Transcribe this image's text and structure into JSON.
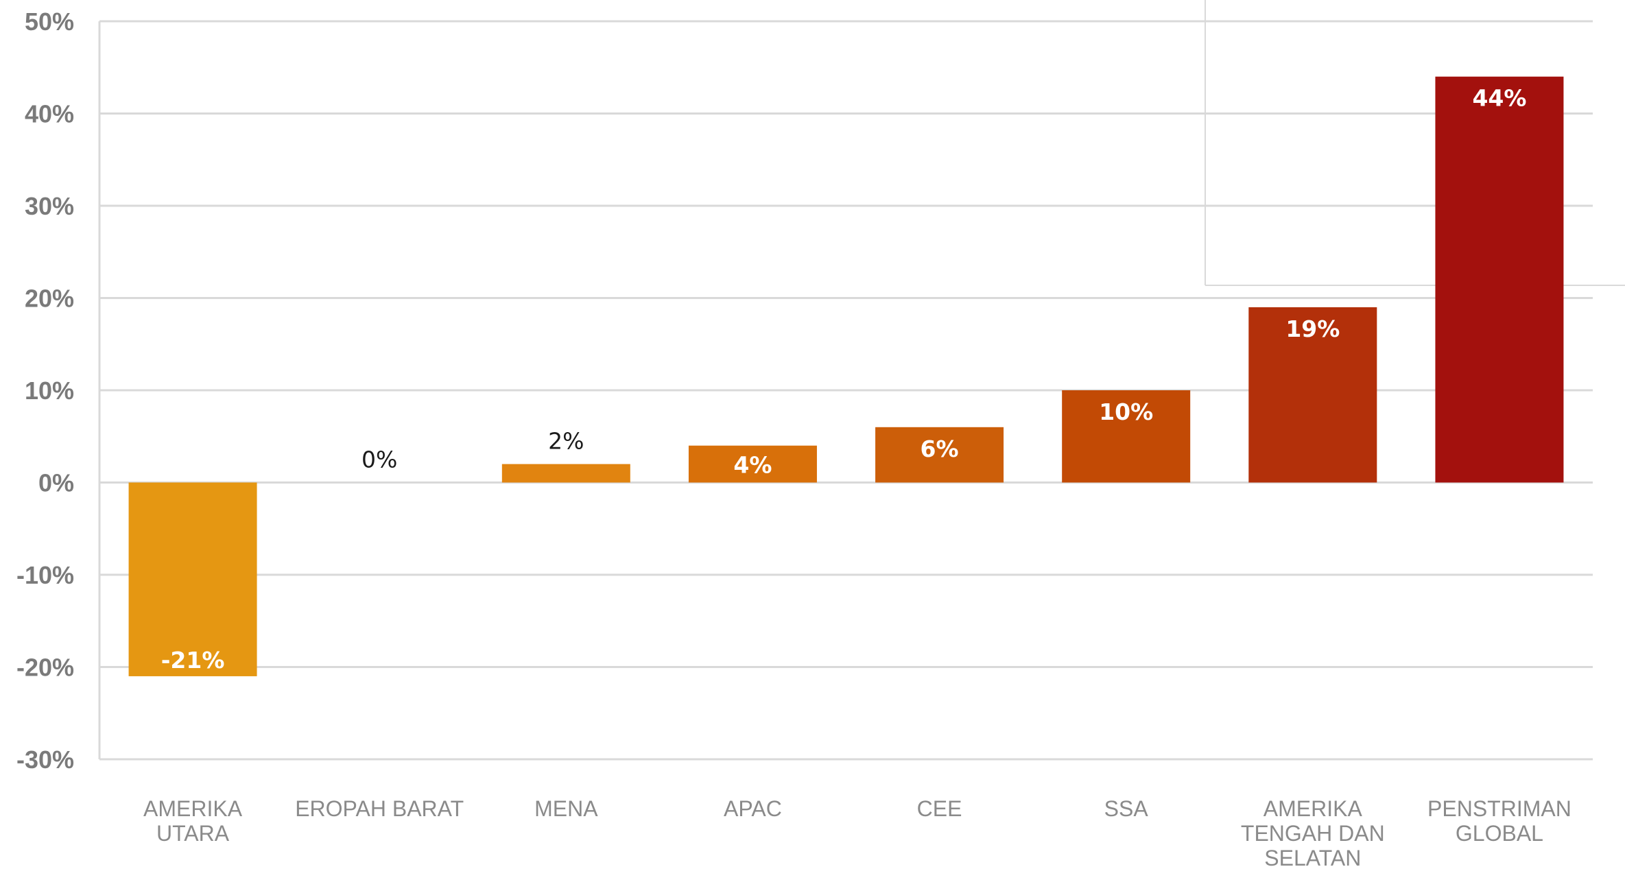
{
  "chart_data": {
    "type": "bar",
    "title": "",
    "xlabel": "",
    "ylabel": "",
    "ylim": [
      -30,
      50
    ],
    "yticks": [
      50,
      40,
      30,
      20,
      10,
      0,
      -10,
      -20,
      -30
    ],
    "ytick_labels": [
      "50%",
      "40%",
      "30%",
      "20%",
      "10%",
      "0%",
      "-10%",
      "-20%",
      "-30%"
    ],
    "grid": true,
    "categories": [
      [
        "AMERIKA",
        "UTARA"
      ],
      [
        "EROPAH BARAT"
      ],
      [
        "MENA"
      ],
      [
        "APAC"
      ],
      [
        "CEE"
      ],
      [
        "SSA"
      ],
      [
        "AMERIKA",
        "TENGAH DAN",
        "SELATAN"
      ],
      [
        "PENSTRIMAN",
        "GLOBAL"
      ]
    ],
    "values": [
      -21,
      0,
      2,
      4,
      6,
      10,
      19,
      44
    ],
    "data_labels": [
      "-21%",
      "0%",
      "2%",
      "4%",
      "6%",
      "10%",
      "19%",
      "44%"
    ],
    "colors": [
      "#e59712",
      "#e48c10",
      "#e18410",
      "#d8700a",
      "#cc5e09",
      "#c24a05",
      "#b3300a",
      "#a3110d"
    ]
  }
}
